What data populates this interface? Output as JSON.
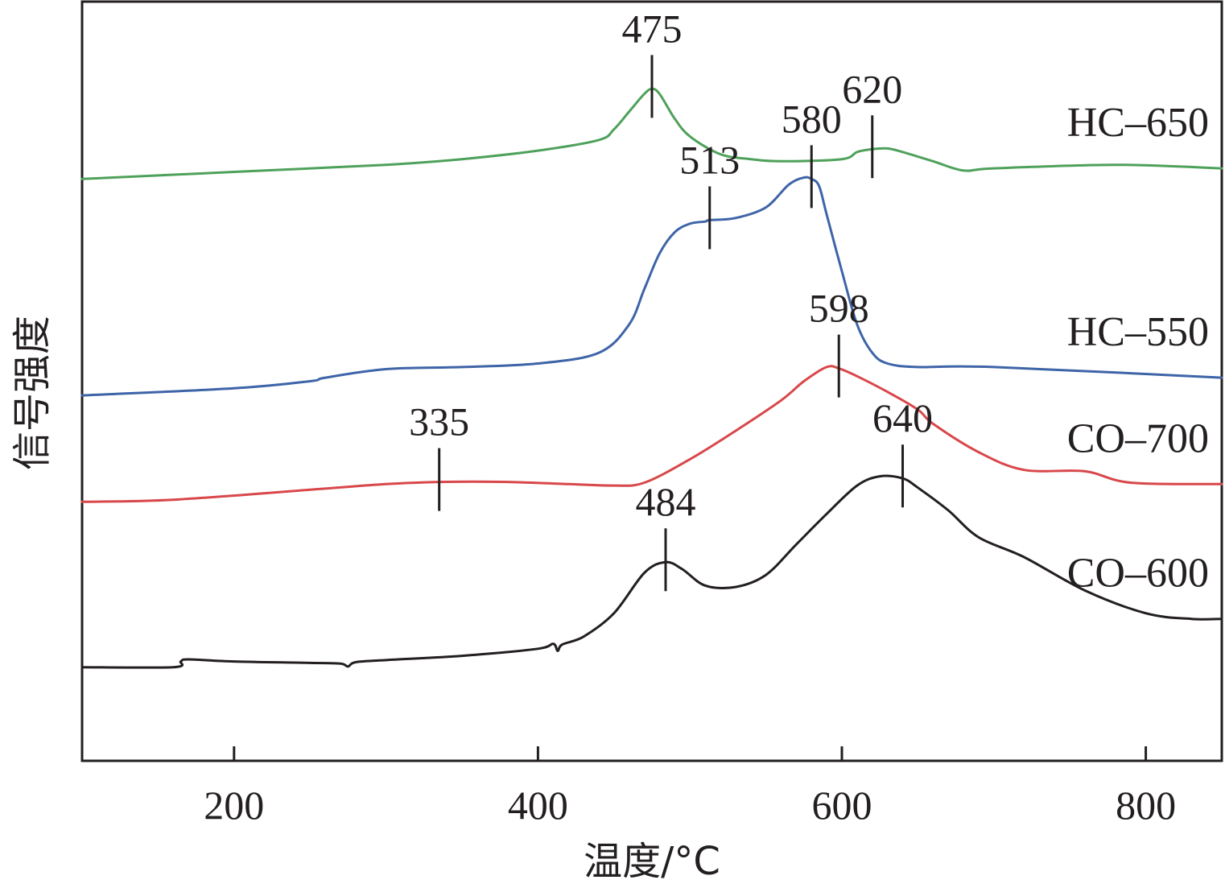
{
  "chart_data": {
    "type": "line",
    "xlabel": "温度/°C",
    "ylabel": "信号强度",
    "xlim": [
      100,
      850
    ],
    "ylim": [
      -0.2,
      10.5
    ],
    "xticks": [
      200,
      400,
      600,
      800
    ],
    "y_tick_labels": false,
    "grid": false,
    "legend": "none",
    "series": [
      {
        "name": "HC–650",
        "color": "#4ea15a",
        "x": [
          100,
          200,
          300,
          350,
          400,
          440,
          450,
          460,
          470,
          475,
          480,
          490,
          500,
          520,
          540,
          560,
          600,
          610,
          620,
          630,
          640,
          660,
          680,
          700,
          780,
          850
        ],
        "y": [
          8.0,
          8.1,
          8.2,
          8.28,
          8.4,
          8.55,
          8.7,
          8.95,
          9.2,
          9.27,
          9.2,
          8.85,
          8.6,
          8.35,
          8.28,
          8.25,
          8.28,
          8.38,
          8.42,
          8.43,
          8.38,
          8.25,
          8.12,
          8.15,
          8.2,
          8.15
        ]
      },
      {
        "name": "HC–550",
        "color": "#3e64a8",
        "x": [
          100,
          200,
          250,
          260,
          300,
          350,
          400,
          440,
          460,
          470,
          480,
          490,
          500,
          510,
          513,
          530,
          550,
          565,
          575,
          580,
          585,
          590,
          600,
          610,
          620,
          630,
          650,
          700,
          850
        ],
        "y": [
          4.95,
          5.05,
          5.15,
          5.2,
          5.32,
          5.35,
          5.4,
          5.55,
          5.95,
          6.45,
          6.95,
          7.25,
          7.37,
          7.4,
          7.42,
          7.45,
          7.6,
          7.92,
          8.02,
          8.0,
          7.9,
          7.5,
          6.7,
          5.95,
          5.55,
          5.4,
          5.35,
          5.35,
          5.2
        ]
      },
      {
        "name": "CO–700",
        "color": "#d8474a",
        "x": [
          100,
          160,
          250,
          300,
          335,
          380,
          420,
          450,
          470,
          500,
          530,
          560,
          575,
          590,
          598,
          610,
          630,
          650,
          660,
          690,
          720,
          760,
          790,
          850
        ],
        "y": [
          3.45,
          3.48,
          3.62,
          3.7,
          3.73,
          3.73,
          3.7,
          3.68,
          3.72,
          4.05,
          4.45,
          4.88,
          5.15,
          5.35,
          5.33,
          5.22,
          5.0,
          4.75,
          4.55,
          4.15,
          3.9,
          3.88,
          3.72,
          3.7
        ]
      },
      {
        "name": "CO–600",
        "color": "#231f20",
        "x": [
          100,
          160,
          165,
          170,
          200,
          250,
          270,
          275,
          280,
          300,
          350,
          400,
          410,
          413,
          416,
          430,
          450,
          470,
          484,
          495,
          510,
          530,
          550,
          570,
          590,
          610,
          625,
          640,
          650,
          670,
          690,
          720,
          760,
          800,
          830,
          850
        ],
        "y": [
          1.12,
          1.12,
          1.2,
          1.23,
          1.2,
          1.18,
          1.17,
          1.13,
          1.19,
          1.22,
          1.28,
          1.38,
          1.45,
          1.35,
          1.44,
          1.55,
          1.88,
          2.45,
          2.6,
          2.5,
          2.27,
          2.25,
          2.42,
          2.85,
          3.28,
          3.68,
          3.81,
          3.78,
          3.65,
          3.33,
          2.95,
          2.67,
          2.2,
          1.88,
          1.8,
          1.8
        ]
      }
    ],
    "annotations": [
      {
        "series": "HC–650",
        "text": "475",
        "x": 475,
        "y": 9.27
      },
      {
        "series": "HC–650",
        "text": "620",
        "x": 620,
        "y": 8.42
      },
      {
        "series": "HC–550",
        "text": "513",
        "x": 513,
        "y": 7.42
      },
      {
        "series": "HC–550",
        "text": "580",
        "x": 580,
        "y": 8.0
      },
      {
        "series": "CO–700",
        "text": "335",
        "x": 335,
        "y": 3.73
      },
      {
        "series": "CO–700",
        "text": "598",
        "x": 598,
        "y": 5.33
      },
      {
        "series": "CO–600",
        "text": "484",
        "x": 484,
        "y": 2.6
      },
      {
        "series": "CO–600",
        "text": "640",
        "x": 640,
        "y": 3.78
      }
    ]
  }
}
